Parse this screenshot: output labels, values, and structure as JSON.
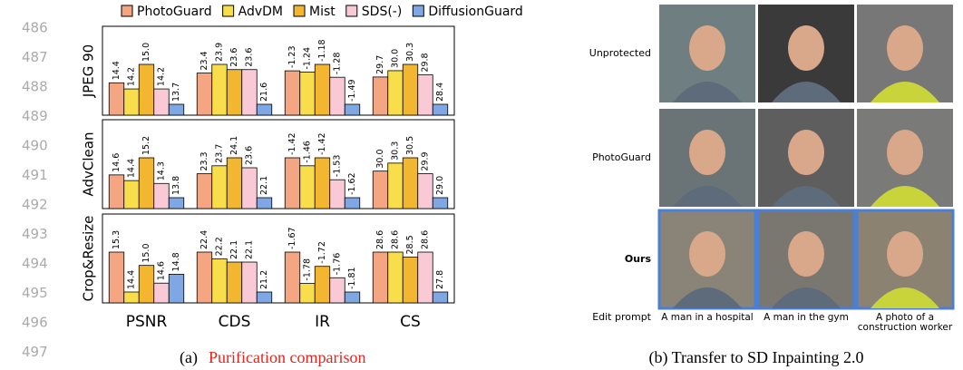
{
  "line_numbers": [
    "486",
    "487",
    "488",
    "489",
    "490",
    "491",
    "492",
    "493",
    "494",
    "495",
    "496",
    "497"
  ],
  "chart_data": {
    "type": "grouped-bar",
    "categories": [
      "PSNR",
      "CDS",
      "IR",
      "CS"
    ],
    "series": [
      {
        "name": "PhotoGuard",
        "color": "#f4a582"
      },
      {
        "name": "AdvDM",
        "color": "#f9de4b"
      },
      {
        "name": "Mist",
        "color": "#f2b631"
      },
      {
        "name": "SDS(-)",
        "color": "#f9c9d6"
      },
      {
        "name": "DiffusionGuard",
        "color": "#7fa7e3"
      }
    ],
    "panels": [
      {
        "label": "JPEG 90",
        "values": [
          [
            14.4,
            14.2,
            15.0,
            14.2,
            13.7
          ],
          [
            23.4,
            23.9,
            23.6,
            23.6,
            21.6
          ],
          [
            -1.23,
            -1.24,
            -1.18,
            -1.28,
            -1.49
          ],
          [
            29.7,
            30.0,
            30.3,
            29.8,
            28.4
          ]
        ],
        "value_labels": [
          [
            "14.4",
            "14.2",
            "15.0",
            "14.2",
            "13.7"
          ],
          [
            "23.4",
            "23.9",
            "23.6",
            "23.6",
            "21.6"
          ],
          [
            "-1.23",
            "-1.24",
            "-1.18",
            "-1.28",
            "-1.49"
          ],
          [
            "29.7",
            "30.0",
            "30.3",
            "29.8",
            "28.4"
          ]
        ]
      },
      {
        "label": "AdvClean",
        "values": [
          [
            14.6,
            14.4,
            15.2,
            14.3,
            13.8
          ],
          [
            23.3,
            23.7,
            24.1,
            23.6,
            22.1
          ],
          [
            -1.42,
            -1.46,
            -1.42,
            -1.53,
            -1.62
          ],
          [
            30.0,
            30.3,
            30.5,
            29.9,
            29.0
          ]
        ],
        "value_labels": [
          [
            "14.6",
            "14.4",
            "15.2",
            "14.3",
            "13.8"
          ],
          [
            "23.3",
            "23.7",
            "24.1",
            "23.6",
            "22.1"
          ],
          [
            "-1.42",
            "-1.46",
            "-1.42",
            "-1.53",
            "-1.62"
          ],
          [
            "30.0",
            "30.3",
            "30.5",
            "29.9",
            "29.0"
          ]
        ]
      },
      {
        "label": "Crop&Resize",
        "values": [
          [
            15.3,
            14.4,
            15.0,
            14.6,
            14.8
          ],
          [
            22.4,
            22.2,
            22.1,
            22.1,
            21.2
          ],
          [
            -1.67,
            -1.78,
            -1.72,
            -1.76,
            -1.81
          ],
          [
            28.6,
            28.6,
            28.5,
            28.6,
            27.8
          ]
        ],
        "value_labels": [
          [
            "15.3",
            "14.4",
            "15.0",
            "14.6",
            "14.8"
          ],
          [
            "22.4",
            "22.2",
            "22.1",
            "22.1",
            "21.2"
          ],
          [
            "-1.67",
            "-1.78",
            "-1.72",
            "-1.76",
            "-1.81"
          ],
          [
            "28.6",
            "28.6",
            "28.5",
            "28.6",
            "27.8"
          ]
        ]
      }
    ],
    "caption": {
      "prefix": "(a) ",
      "text": "Purification comparison"
    }
  },
  "image_grid": {
    "row_labels": [
      "Unprotected",
      "PhotoGuard",
      "Ours"
    ],
    "edit_prompt_label": "Edit prompt",
    "prompts": [
      [
        "A man in a hospital"
      ],
      [
        "A man in the gym"
      ],
      [
        "A photo of a",
        "construction worker"
      ]
    ],
    "caption": "(b) Transfer to SD Inpainting 2.0"
  }
}
